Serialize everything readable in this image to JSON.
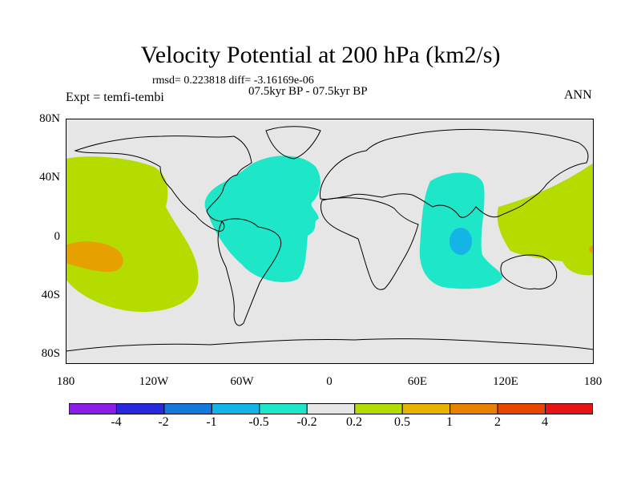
{
  "title": "Velocity Potential at 200 hPa (km2/s)",
  "stats": "rmsd= 0.223818 diff= -3.16169e-06",
  "subtitle": "07.5kyr BP - 07.5kyr BP",
  "experiment": "Expt = temfi-tembi",
  "season": "ANN",
  "axes": {
    "y_labels": [
      "80N",
      "40N",
      "0",
      "40S",
      "80S"
    ],
    "x_labels": [
      "180",
      "120W",
      "60W",
      "0",
      "60E",
      "120E",
      "180"
    ]
  },
  "colorbar": {
    "colors": [
      "#8a1ee6",
      "#2828dc",
      "#1478dc",
      "#14b4e6",
      "#1ee6c8",
      "#e6e6e6",
      "#b4dc00",
      "#e6b400",
      "#e68200",
      "#e64600",
      "#e61414"
    ],
    "labels": [
      "-4",
      "-2",
      "-1",
      "-0.5",
      "-0.2",
      "0.2",
      "0.5",
      "1",
      "2",
      "4"
    ]
  },
  "colors": {
    "background": "#e6e6e6",
    "positive_weak": "#b4dc00",
    "positive_mid": "#e6a000",
    "negative_weak": "#1ee6c8",
    "negative_mid": "#14b4e6"
  }
}
